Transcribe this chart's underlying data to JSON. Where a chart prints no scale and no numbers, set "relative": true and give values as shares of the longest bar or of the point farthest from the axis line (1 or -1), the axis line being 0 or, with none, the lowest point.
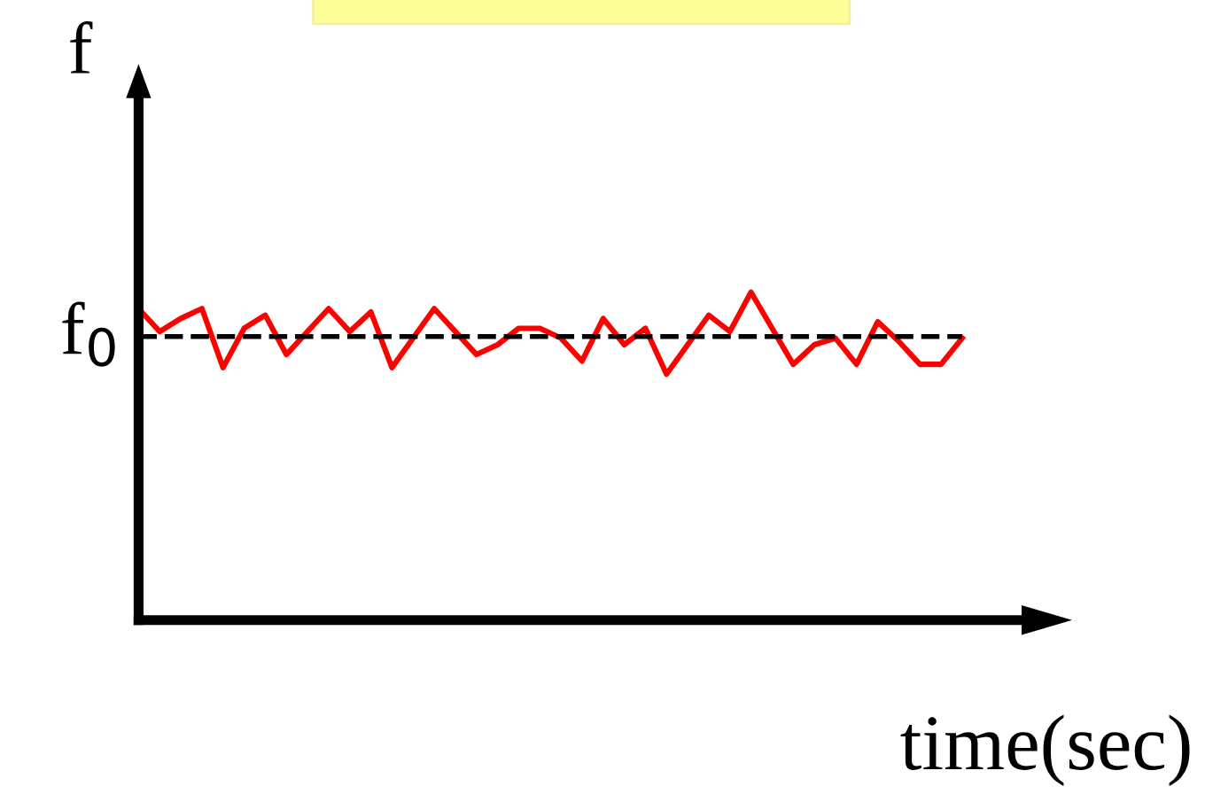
{
  "chart_data": {
    "type": "line",
    "relative": true,
    "xlabel": "time(sec)",
    "ylabel": "f",
    "categories": [
      null,
      null,
      null,
      null,
      null,
      null,
      null,
      null,
      null,
      null,
      null,
      null,
      null,
      null,
      null,
      null,
      null,
      null,
      null,
      null,
      null,
      null,
      null,
      null,
      null,
      null,
      null,
      null,
      null,
      null,
      null,
      null,
      null,
      null,
      null,
      null,
      null,
      null,
      null,
      null
    ],
    "series": [
      {
        "color": "#ff0000",
        "values": [
          0.95,
          0.88,
          0.92,
          0.95,
          0.77,
          0.89,
          0.93,
          0.81,
          0.88,
          0.95,
          0.88,
          0.94,
          0.77,
          0.86,
          0.95,
          0.88,
          0.81,
          0.84,
          0.89,
          0.89,
          0.86,
          0.79,
          0.92,
          0.84,
          0.89,
          0.75,
          0.84,
          0.93,
          0.88,
          1,
          0.89,
          0.78,
          0.84,
          0.86,
          0.78,
          0.91,
          0.85,
          0.78,
          0.78,
          0.86
        ]
      }
    ],
    "ref_lines": [
      {
        "axis": "y",
        "value": 0.865,
        "label": "f$_{0}$",
        "color": "#000000",
        "line_style": "dashed"
      }
    ],
    "legend": false,
    "marker": "none",
    "line_style": "solid"
  }
}
